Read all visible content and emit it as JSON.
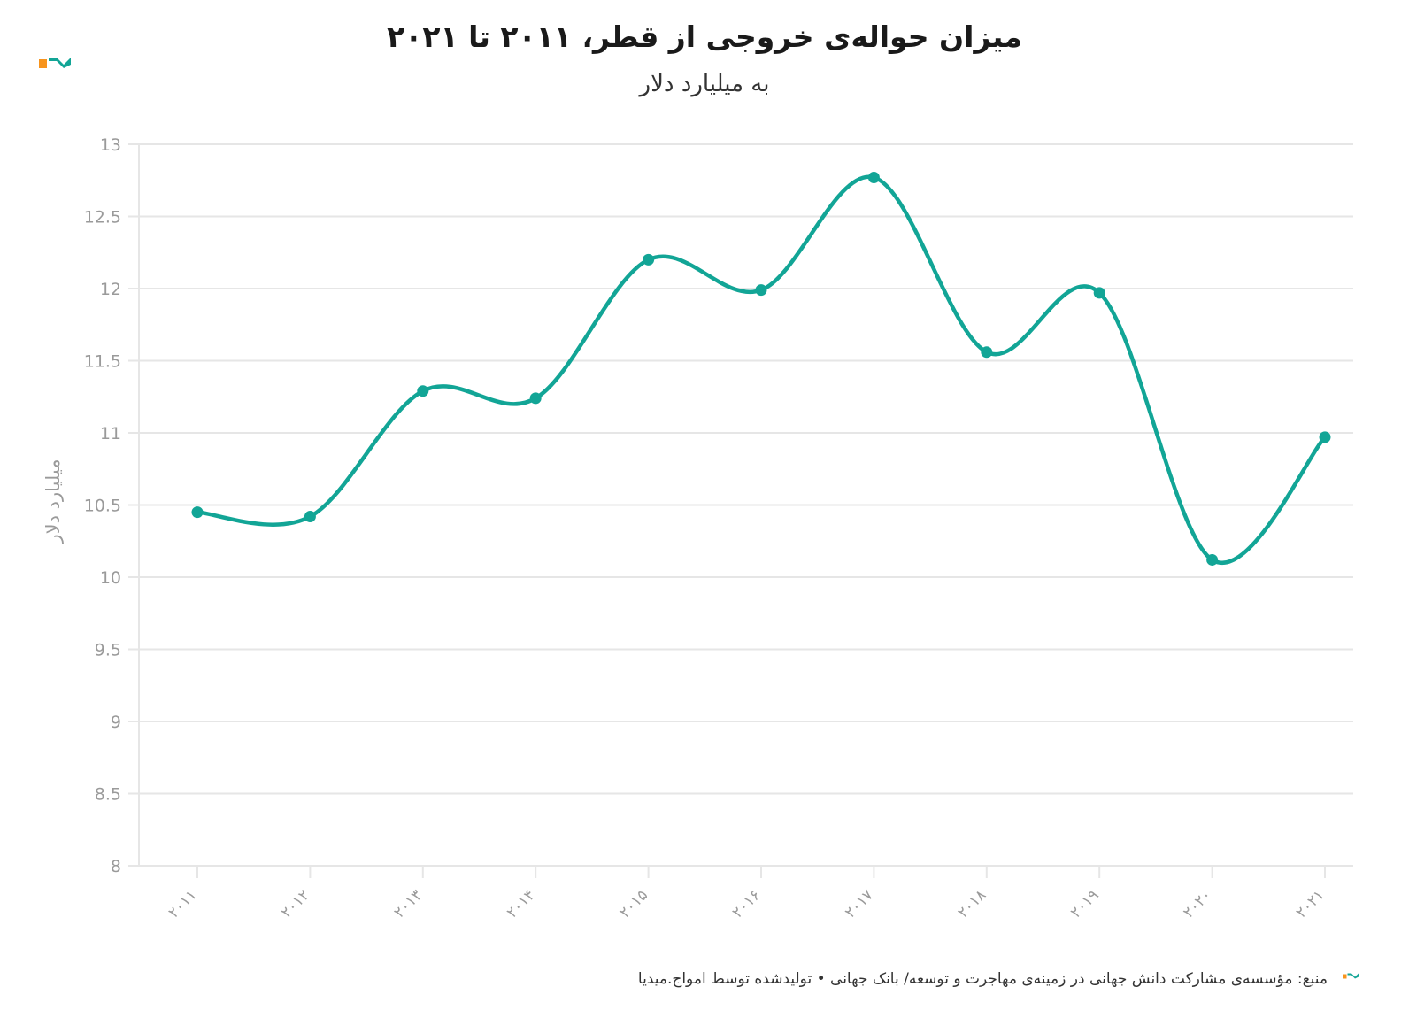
{
  "header": {
    "title": "میزان حواله‌ی خروجی از قطر، ۲۰۱۱ تا ۲۰۲۱",
    "subtitle": "به میلیارد دلار"
  },
  "footer": {
    "source": "منبع: مؤسسه‌ی مشارکت دانش جهانی در زمینه‌ی مهاجرت و توسعه/ بانک جهانی • تولیدشده توسط امواج.میدیا"
  },
  "colors": {
    "line": "#12a596",
    "grid": "#e6e6e6",
    "axis_text": "#9a9a9a",
    "logo_orange": "#f7941d",
    "logo_teal": "#12a596"
  },
  "chart_data": {
    "type": "line",
    "title": "میزان حواله‌ی خروجی از قطر، ۲۰۱۱ تا ۲۰۲۱",
    "subtitle": "به میلیارد دلار",
    "xlabel": "",
    "ylabel": "میلیارد دلار",
    "x": [
      "۲۰۱۱",
      "۲۰۱۲",
      "۲۰۱۳",
      "۲۰۱۴",
      "۲۰۱۵",
      "۲۰۱۶",
      "۲۰۱۷",
      "۲۰۱۸",
      "۲۰۱۹",
      "۲۰۲۰",
      "۲۰۲۱"
    ],
    "series": [
      {
        "values": [
          10.45,
          10.42,
          11.29,
          11.24,
          12.2,
          11.99,
          12.77,
          11.56,
          11.97,
          10.12,
          10.97
        ]
      }
    ],
    "ylim": [
      8,
      13
    ],
    "yticks": [
      "8",
      "8.5",
      "9",
      "9.5",
      "10",
      "10.5",
      "11",
      "11.5",
      "12",
      "12.5",
      "13"
    ],
    "grid": true,
    "smooth": true,
    "legend": "none"
  }
}
